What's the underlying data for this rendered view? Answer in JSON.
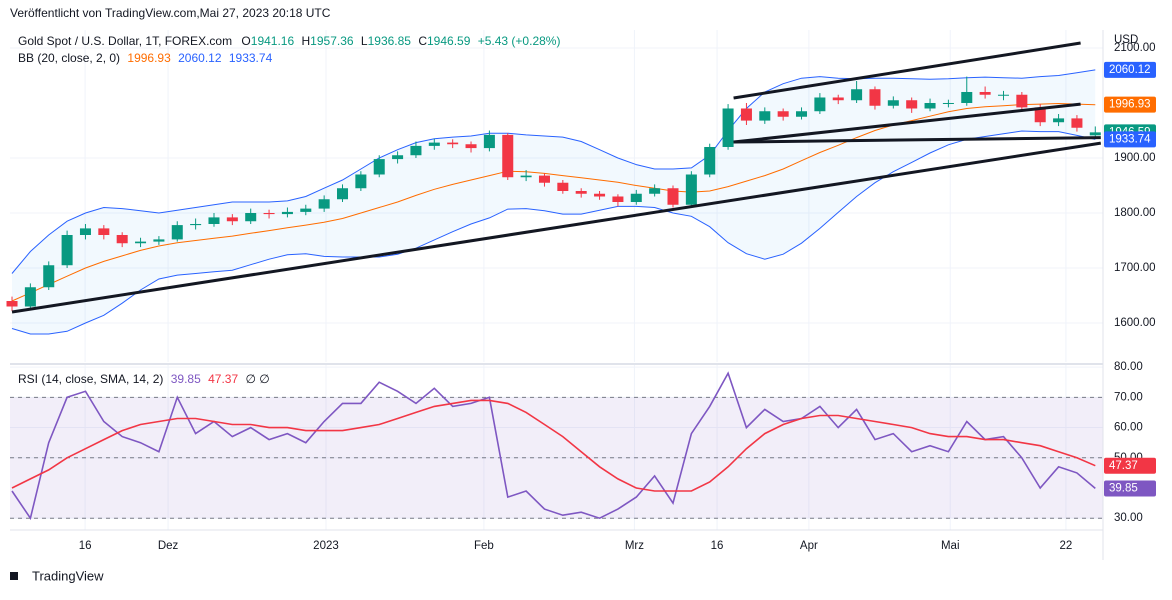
{
  "header": {
    "published": "Veröffentlicht von TradingView.com,Mai 27, 2023 20:18 UTC",
    "logo": "TradingView"
  },
  "chart_data": [
    {
      "type": "candlestick",
      "title": "Gold Spot / U.S. Dollar, 1T, FOREX.com",
      "ohlc_labels": [
        "O",
        "H",
        "L",
        "C"
      ],
      "change_label": "+5.43 (+0.28%)",
      "axis_unit": "USD",
      "candles": [
        [
          1640,
          1648,
          1622,
          1630
        ],
        [
          1630,
          1672,
          1625,
          1665
        ],
        [
          1665,
          1712,
          1660,
          1705
        ],
        [
          1705,
          1768,
          1700,
          1760
        ],
        [
          1760,
          1780,
          1752,
          1772
        ],
        [
          1772,
          1778,
          1752,
          1760
        ],
        [
          1760,
          1765,
          1738,
          1745
        ],
        [
          1745,
          1755,
          1738,
          1748
        ],
        [
          1748,
          1758,
          1742,
          1752
        ],
        [
          1752,
          1785,
          1748,
          1778
        ],
        [
          1778,
          1790,
          1770,
          1780
        ],
        [
          1780,
          1800,
          1775,
          1792
        ],
        [
          1792,
          1798,
          1778,
          1785
        ],
        [
          1785,
          1808,
          1780,
          1800
        ],
        [
          1800,
          1806,
          1790,
          1798
        ],
        [
          1798,
          1810,
          1792,
          1802
        ],
        [
          1802,
          1815,
          1796,
          1808
        ],
        [
          1808,
          1832,
          1802,
          1825
        ],
        [
          1825,
          1852,
          1820,
          1845
        ],
        [
          1845,
          1876,
          1840,
          1870
        ],
        [
          1870,
          1905,
          1865,
          1898
        ],
        [
          1898,
          1912,
          1890,
          1905
        ],
        [
          1905,
          1930,
          1900,
          1922
        ],
        [
          1922,
          1935,
          1915,
          1928
        ],
        [
          1928,
          1934,
          1918,
          1925
        ],
        [
          1925,
          1930,
          1910,
          1918
        ],
        [
          1918,
          1950,
          1912,
          1942
        ],
        [
          1942,
          1945,
          1860,
          1865
        ],
        [
          1865,
          1878,
          1858,
          1868
        ],
        [
          1868,
          1872,
          1848,
          1855
        ],
        [
          1855,
          1860,
          1835,
          1840
        ],
        [
          1840,
          1845,
          1828,
          1835
        ],
        [
          1835,
          1840,
          1824,
          1830
        ],
        [
          1830,
          1834,
          1812,
          1820
        ],
        [
          1820,
          1842,
          1815,
          1835
        ],
        [
          1835,
          1852,
          1830,
          1845
        ],
        [
          1845,
          1850,
          1810,
          1815
        ],
        [
          1815,
          1876,
          1810,
          1870
        ],
        [
          1870,
          1926,
          1865,
          1920
        ],
        [
          1920,
          1998,
          1915,
          1990
        ],
        [
          1990,
          2000,
          1960,
          1968
        ],
        [
          1968,
          1992,
          1962,
          1985
        ],
        [
          1985,
          1990,
          1968,
          1975
        ],
        [
          1975,
          1992,
          1970,
          1985
        ],
        [
          1985,
          2018,
          1980,
          2010
        ],
        [
          2010,
          2015,
          1998,
          2005
        ],
        [
          2005,
          2040,
          2000,
          2025
        ],
        [
          2025,
          2030,
          1988,
          1995
        ],
        [
          1995,
          2012,
          1990,
          2005
        ],
        [
          2005,
          2010,
          1982,
          1990
        ],
        [
          1990,
          2008,
          1985,
          2000
        ],
        [
          2000,
          2006,
          1992,
          2000
        ],
        [
          2000,
          2048,
          1995,
          2020
        ],
        [
          2020,
          2030,
          2008,
          2015
        ],
        [
          2015,
          2022,
          2005,
          2015
        ],
        [
          2015,
          2020,
          1985,
          1992
        ],
        [
          1992,
          1998,
          1958,
          1965
        ],
        [
          1965,
          1980,
          1958,
          1972
        ],
        [
          1972,
          1978,
          1948,
          1955
        ],
        [
          1941.16,
          1957.36,
          1936.85,
          1946.59
        ]
      ],
      "up_color": "#089981",
      "down_color": "#f23645",
      "indicator": "BB (20, close, 2, 0)",
      "series": [
        {
          "name": "middle",
          "color": "#ff6d00",
          "values": [
            1640,
            1655,
            1670,
            1685,
            1700,
            1712,
            1722,
            1732,
            1740,
            1746,
            1750,
            1754,
            1758,
            1763,
            1768,
            1773,
            1778,
            1783,
            1790,
            1800,
            1810,
            1820,
            1832,
            1843,
            1852,
            1860,
            1868,
            1876,
            1875,
            1872,
            1868,
            1864,
            1860,
            1856,
            1850,
            1845,
            1840,
            1838,
            1840,
            1848,
            1858,
            1868,
            1880,
            1895,
            1910,
            1923,
            1937,
            1950,
            1960,
            1968,
            1976,
            1984,
            1990,
            1993,
            1995,
            1997,
            1998,
            1999,
            1998,
            1996.93
          ]
        },
        {
          "name": "upper",
          "color": "#2962ff",
          "values": [
            1690,
            1730,
            1760,
            1785,
            1800,
            1810,
            1808,
            1804,
            1800,
            1805,
            1810,
            1815,
            1820,
            1820,
            1820,
            1822,
            1830,
            1845,
            1860,
            1880,
            1900,
            1915,
            1928,
            1935,
            1938,
            1940,
            1945,
            1945,
            1942,
            1940,
            1938,
            1930,
            1915,
            1900,
            1888,
            1880,
            1880,
            1882,
            1905,
            1950,
            1990,
            2020,
            2035,
            2045,
            2048,
            2045,
            2044,
            2045,
            2045,
            2044,
            2043,
            2044,
            2046,
            2047,
            2046,
            2045,
            2048,
            2050,
            2055,
            2060.12
          ]
        },
        {
          "name": "lower",
          "color": "#2962ff",
          "values": [
            1590,
            1580,
            1580,
            1585,
            1600,
            1614,
            1636,
            1660,
            1680,
            1687,
            1690,
            1693,
            1696,
            1706,
            1716,
            1724,
            1726,
            1721,
            1720,
            1720,
            1720,
            1725,
            1736,
            1751,
            1766,
            1780,
            1791,
            1807,
            1808,
            1804,
            1798,
            1798,
            1805,
            1812,
            1812,
            1810,
            1800,
            1794,
            1775,
            1746,
            1726,
            1716,
            1725,
            1745,
            1772,
            1801,
            1830,
            1855,
            1875,
            1892,
            1909,
            1924,
            1934,
            1939,
            1944,
            1949,
            1948,
            1948,
            1941,
            1933.74
          ]
        }
      ],
      "trendlines": [
        [
          0,
          1620,
          59.3,
          1927
        ],
        [
          39.3,
          2009,
          58.2,
          2109
        ],
        [
          39.3,
          1929,
          58.2,
          1998
        ],
        [
          39.3,
          1929,
          59.3,
          1937
        ]
      ],
      "xlim": [
        -0.11,
        59.42
      ],
      "ylim": [
        1529.1,
        2132.7
      ],
      "yticks": [
        {
          "value": 1600,
          "label": "1600.00"
        },
        {
          "value": 1700,
          "label": "1700.00"
        },
        {
          "value": 1800,
          "label": "1800.00"
        },
        {
          "value": 1900,
          "label": "1900.00"
        },
        {
          "value": 2100,
          "label": "2100.00"
        }
      ],
      "xticks": [
        {
          "value": 3.98,
          "label": "16"
        },
        {
          "value": 8.5,
          "label": "Dez"
        },
        {
          "value": 17.1,
          "label": "2023"
        },
        {
          "value": 25.7,
          "label": "Feb"
        },
        {
          "value": 33.9,
          "label": "Mrz"
        },
        {
          "value": 38.4,
          "label": "16"
        },
        {
          "value": 43.4,
          "label": "Apr"
        },
        {
          "value": 51.1,
          "label": "Mai"
        },
        {
          "value": 57.4,
          "label": "22"
        }
      ],
      "grid": true
    },
    {
      "type": "line",
      "title": "RSI (14, close, SMA, 14, 2)",
      "extra": "∅  ∅",
      "series": [
        {
          "name": "RSI",
          "color": "#7e57c2",
          "values": [
            39,
            30,
            55,
            70,
            72,
            62,
            57,
            55,
            52,
            70,
            58,
            62,
            57,
            60,
            56,
            58,
            55,
            62,
            68,
            68,
            75,
            72,
            68,
            73,
            67,
            68,
            70,
            37,
            39,
            33,
            31,
            32,
            30,
            33,
            37,
            44,
            35,
            58,
            67,
            78,
            60,
            66,
            62,
            63,
            67,
            60,
            66,
            56,
            58,
            52,
            54,
            52,
            62,
            56,
            57,
            50,
            40,
            47,
            45,
            39.85
          ]
        },
        {
          "name": "SMA",
          "color": "#f23645",
          "values": [
            40,
            43,
            46,
            50,
            53,
            56,
            59,
            61,
            62,
            63,
            63,
            62,
            61,
            61,
            60,
            60,
            59,
            59,
            59,
            60,
            61,
            63,
            65,
            67,
            68,
            69,
            69,
            68,
            65,
            61,
            57,
            52,
            47,
            43,
            40,
            39,
            39,
            39,
            42,
            47,
            53,
            58,
            61,
            63,
            64,
            64,
            63,
            62,
            61,
            60,
            58,
            57,
            57,
            56,
            56,
            55,
            54,
            52,
            50,
            47.37
          ]
        }
      ],
      "band": [
        30,
        70
      ],
      "midline": 50,
      "ylim": [
        26.1,
        80.7
      ],
      "yticks": [
        {
          "value": 30,
          "label": "30.00"
        },
        {
          "value": 50,
          "label": "50.00"
        },
        {
          "value": 60,
          "label": "60.00"
        },
        {
          "value": 70,
          "label": "70.00"
        },
        {
          "value": 80,
          "label": "80.00"
        }
      ],
      "grid": true
    }
  ]
}
